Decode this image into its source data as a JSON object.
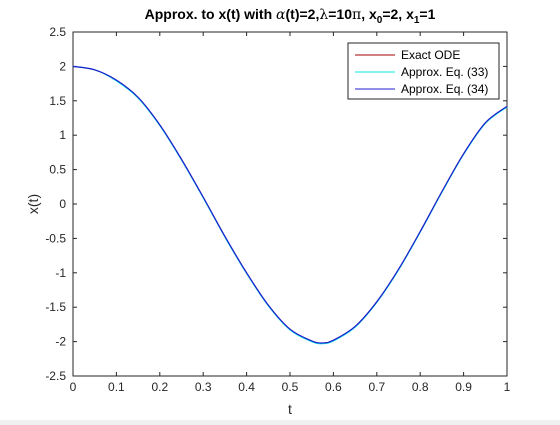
{
  "chart_data": {
    "type": "line",
    "title": "Approx. to x(t) with α(t)=2,λ=10π, x₀=2, x₁=1",
    "title_parts": {
      "t1": "Approx. to x(t) with ",
      "alpha": "α",
      "t2": "(t)=2,",
      "lambda": "λ",
      "t3": "=10",
      "pi": "π",
      "t4": ", x",
      "sub0": "0",
      "t5": "=2, x",
      "sub1": "1",
      "t6": "=1"
    },
    "xlabel": "t",
    "ylabel": "x(t)",
    "xlim": [
      0,
      1
    ],
    "ylim": [
      -2.5,
      2.5
    ],
    "xticks": [
      "0",
      "0.1",
      "0.2",
      "0.3",
      "0.4",
      "0.5",
      "0.6",
      "0.7",
      "0.8",
      "0.9",
      "1"
    ],
    "yticks": [
      "2.5",
      "2",
      "1.5",
      "1",
      "0.5",
      "0",
      "-0.5",
      "-1",
      "-1.5",
      "-2",
      "-2.5"
    ],
    "grid": false,
    "legend_position": "top-right",
    "series": [
      {
        "name": "Exact ODE",
        "color": "#a00000",
        "x": [
          0,
          0.05,
          0.1,
          0.15,
          0.2,
          0.25,
          0.3,
          0.35,
          0.4,
          0.45,
          0.5,
          0.55,
          0.575,
          0.6,
          0.65,
          0.7,
          0.75,
          0.8,
          0.85,
          0.9,
          0.95,
          1.0
        ],
        "y": [
          2.0,
          1.95,
          1.8,
          1.55,
          1.15,
          0.65,
          0.1,
          -0.47,
          -1.0,
          -1.47,
          -1.82,
          -1.99,
          -2.02,
          -1.98,
          -1.78,
          -1.42,
          -0.95,
          -0.4,
          0.18,
          0.73,
          1.18,
          1.42
        ]
      },
      {
        "name": "Approx. Eq. (33)",
        "color": "#00e5e5",
        "x": [
          0,
          0.05,
          0.1,
          0.15,
          0.2,
          0.25,
          0.3,
          0.35,
          0.4,
          0.45,
          0.5,
          0.55,
          0.575,
          0.6,
          0.65,
          0.7,
          0.75,
          0.8,
          0.85,
          0.9,
          0.95,
          1.0
        ],
        "y": [
          2.0,
          1.95,
          1.79,
          1.54,
          1.14,
          0.64,
          0.09,
          -0.48,
          -1.01,
          -1.48,
          -1.83,
          -2.0,
          -2.03,
          -1.99,
          -1.79,
          -1.43,
          -0.96,
          -0.41,
          0.17,
          0.72,
          1.17,
          1.41
        ]
      },
      {
        "name": "Approx. Eq. (34)",
        "color": "#1f1fd0",
        "x": [
          0,
          0.05,
          0.1,
          0.15,
          0.2,
          0.25,
          0.3,
          0.35,
          0.4,
          0.45,
          0.5,
          0.55,
          0.575,
          0.6,
          0.65,
          0.7,
          0.75,
          0.8,
          0.85,
          0.9,
          0.95,
          1.0
        ],
        "y": [
          2.0,
          1.95,
          1.8,
          1.55,
          1.15,
          0.65,
          0.1,
          -0.47,
          -1.0,
          -1.47,
          -1.82,
          -1.99,
          -2.02,
          -1.98,
          -1.78,
          -1.42,
          -0.95,
          -0.4,
          0.18,
          0.73,
          1.18,
          1.42
        ]
      }
    ]
  }
}
